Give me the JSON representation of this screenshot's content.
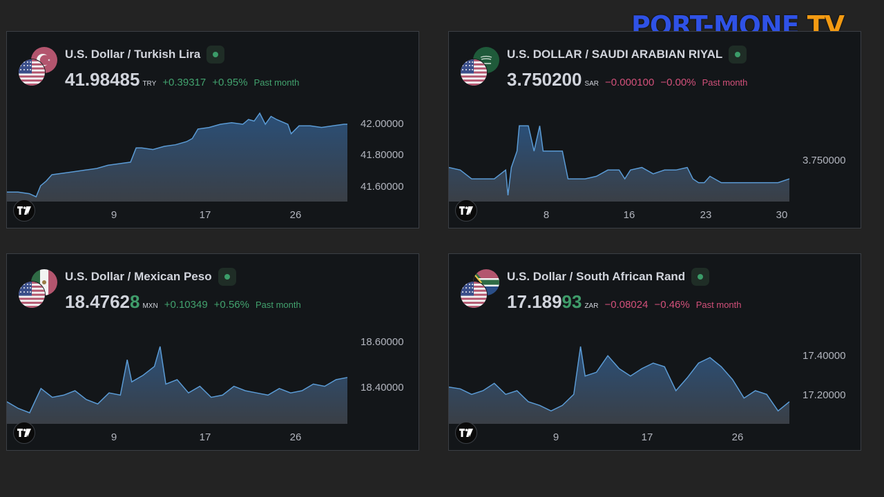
{
  "brand": {
    "part1": "PORT-MONE",
    "part2": "TV"
  },
  "widgets": [
    {
      "title": "U.S. Dollar / Turkish Lira",
      "price_main": "41.98485",
      "price_hi": "",
      "currency": "TRY",
      "change": "+0.39317",
      "change_pct": "+0.95%",
      "period": "Past month",
      "direction": "up",
      "flags": {
        "base": "us-flag-icon",
        "quote": "turkey-flag-icon"
      }
    },
    {
      "title": "U.S. DOLLAR / SAUDI ARABIAN RIYAL",
      "price_main": "3.750200",
      "price_hi": "",
      "currency": "SAR",
      "change": "−0.000100",
      "change_pct": "−0.00%",
      "period": "Past month",
      "direction": "down",
      "flags": {
        "base": "us-flag-icon",
        "quote": "saudi-arabia-flag-icon"
      }
    },
    {
      "title": "U.S. Dollar / Mexican Peso",
      "price_main": "18.4762",
      "price_hi": "8",
      "currency": "MXN",
      "change": "+0.10349",
      "change_pct": "+0.56%",
      "period": "Past month",
      "direction": "up",
      "flags": {
        "base": "us-flag-icon",
        "quote": "mexico-flag-icon"
      }
    },
    {
      "title": "U.S. Dollar / South African Rand",
      "price_main": "17.189",
      "price_hi": "93",
      "currency": "ZAR",
      "change": "−0.08024",
      "change_pct": "−0.46%",
      "period": "Past month",
      "direction": "down",
      "flags": {
        "base": "us-flag-icon",
        "quote": "south-africa-flag-icon"
      }
    }
  ],
  "colors": {
    "line": "#5b9bd5",
    "area_top": "#2a4f78",
    "area_bottom": "#3a3f46",
    "up": "#42a26e",
    "down": "#d2507a",
    "volume": "#3f8f5c"
  },
  "chart_data": [
    {
      "type": "area",
      "x_ticks": [
        "9",
        "17",
        "26"
      ],
      "y_ticks": [
        "42.00000",
        "41.80000",
        "41.60000"
      ],
      "ylim": [
        41.5,
        42.06
      ],
      "x": [
        1,
        2,
        3,
        3.6,
        4,
        4.5,
        5,
        6,
        7,
        8,
        9,
        10,
        11,
        12,
        12.5,
        13,
        14,
        15,
        16,
        17,
        17.5,
        18,
        19,
        20,
        21,
        22,
        22.5,
        23,
        23.5,
        24,
        24.5,
        25,
        26,
        26.3,
        27,
        28,
        29,
        30,
        31,
        31.3
      ],
      "values": [
        41.56,
        41.56,
        41.55,
        41.53,
        41.6,
        41.63,
        41.67,
        41.68,
        41.69,
        41.7,
        41.71,
        41.73,
        41.74,
        41.75,
        41.84,
        41.84,
        41.83,
        41.85,
        41.86,
        41.88,
        41.9,
        41.96,
        41.97,
        41.99,
        42.0,
        41.99,
        42.02,
        42.01,
        42.06,
        41.99,
        42.04,
        42.02,
        41.99,
        41.93,
        41.98,
        41.98,
        41.97,
        41.98,
        41.99,
        41.99
      ]
    },
    {
      "type": "area",
      "x_ticks": [
        "8",
        "16",
        "23",
        "30"
      ],
      "y_ticks": [
        "3.750000"
      ],
      "ylim": [
        3.74985,
        3.75055
      ],
      "x": [
        1,
        2,
        3,
        5,
        6,
        6.2,
        6.5,
        7,
        7.2,
        7.6,
        8,
        8.5,
        9,
        9.3,
        10,
        11,
        11.5,
        12,
        13,
        14,
        15,
        16,
        16.5,
        17,
        18,
        19,
        20,
        21,
        22,
        22.5,
        23,
        23.5,
        24,
        25,
        26,
        27,
        28,
        29,
        30,
        31
      ],
      "values": [
        3.75012,
        3.7501,
        3.75003,
        3.75003,
        3.7501,
        3.7499,
        3.75012,
        3.75025,
        3.75045,
        3.75045,
        3.75045,
        3.75025,
        3.75045,
        3.75025,
        3.75025,
        3.75025,
        3.75003,
        3.75003,
        3.75003,
        3.75005,
        3.7501,
        3.7501,
        3.75003,
        3.7501,
        3.75012,
        3.75007,
        3.7501,
        3.7501,
        3.75012,
        3.75003,
        3.75,
        3.75,
        3.75005,
        3.75,
        3.75,
        3.75,
        3.75,
        3.75,
        3.75,
        3.75003
      ]
    },
    {
      "type": "area",
      "x_ticks": [
        "9",
        "17",
        "26"
      ],
      "y_ticks": [
        "18.60000",
        "18.40000"
      ],
      "ylim": [
        18.26,
        18.66
      ],
      "x": [
        1,
        2,
        3,
        4,
        5,
        6,
        7,
        8,
        9,
        10,
        11,
        11.6,
        12,
        13,
        14,
        14.5,
        15,
        16,
        17,
        18,
        19,
        20,
        21,
        22,
        23,
        24,
        25,
        26,
        27,
        28,
        29,
        30,
        31
      ],
      "values": [
        18.36,
        18.33,
        18.31,
        18.42,
        18.38,
        18.39,
        18.41,
        18.37,
        18.35,
        18.4,
        18.39,
        18.55,
        18.45,
        18.48,
        18.52,
        18.61,
        18.44,
        18.46,
        18.4,
        18.43,
        18.38,
        18.39,
        18.43,
        18.41,
        18.4,
        18.39,
        18.42,
        18.4,
        18.41,
        18.44,
        18.43,
        18.46,
        18.47
      ]
    },
    {
      "type": "area",
      "x_ticks": [
        "9",
        "17",
        "26"
      ],
      "y_ticks": [
        "17.40000",
        "17.20000"
      ],
      "ylim": [
        17.06,
        17.54
      ],
      "x": [
        1,
        2,
        3,
        4,
        5,
        6,
        7,
        8,
        9,
        10,
        11,
        12,
        12.6,
        13,
        14,
        15,
        16,
        17,
        18,
        19,
        20,
        21,
        22,
        23,
        24,
        25,
        26,
        27,
        28,
        29,
        30,
        31
      ],
      "values": [
        17.26,
        17.25,
        17.22,
        17.24,
        17.28,
        17.22,
        17.24,
        17.18,
        17.16,
        17.13,
        17.16,
        17.22,
        17.48,
        17.32,
        17.34,
        17.43,
        17.36,
        17.32,
        17.36,
        17.39,
        17.37,
        17.24,
        17.31,
        17.39,
        17.42,
        17.37,
        17.3,
        17.2,
        17.24,
        17.22,
        17.13,
        17.18
      ]
    }
  ]
}
